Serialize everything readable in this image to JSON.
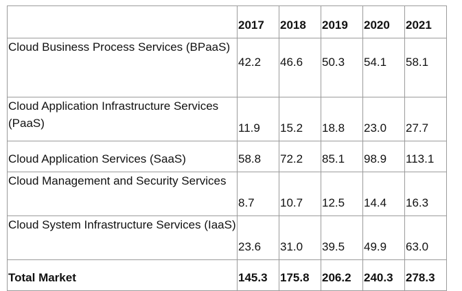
{
  "table": {
    "corner": "",
    "years": [
      "2017",
      "2018",
      "2019",
      "2020",
      "2021"
    ],
    "rows": [
      {
        "label": "Cloud Business Process Services (BPaaS)",
        "values": [
          "42.2",
          "46.6",
          "50.3",
          "54.1",
          "58.1"
        ]
      },
      {
        "label": "Cloud Application Infrastructure Services (PaaS)",
        "values": [
          "11.9",
          "15.2",
          "18.8",
          "23.0",
          "27.7"
        ]
      },
      {
        "label": "Cloud Application Services (SaaS)",
        "values": [
          "58.8",
          "72.2",
          "85.1",
          "98.9",
          "113.1"
        ]
      },
      {
        "label": "Cloud Management and Security Services",
        "values": [
          "8.7",
          "10.7",
          "12.5",
          "14.4",
          "16.3"
        ]
      },
      {
        "label": "Cloud System Infrastructure Services (IaaS)",
        "values": [
          "23.6",
          "31.0",
          "39.5",
          "49.9",
          "63.0"
        ]
      }
    ],
    "total": {
      "label": "Total Market",
      "values": [
        "145.3",
        "175.8",
        "206.2",
        "240.3",
        "278.3"
      ]
    }
  }
}
